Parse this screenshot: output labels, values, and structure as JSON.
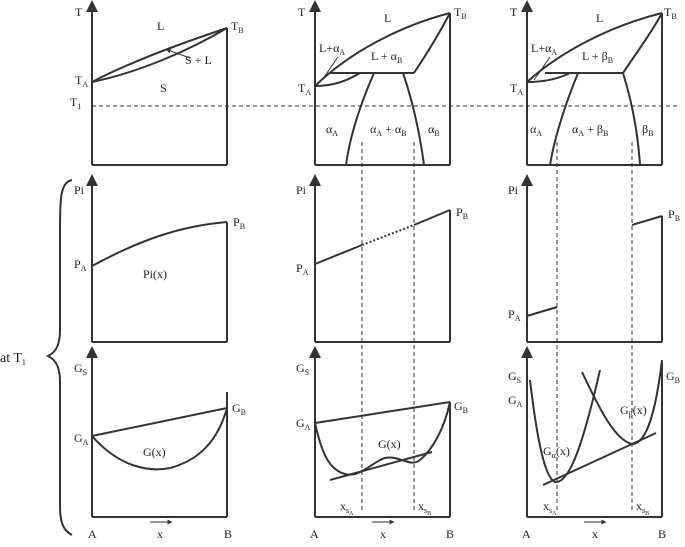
{
  "side": {
    "at": "at T",
    "at_sub": "1"
  },
  "row1": {
    "p1": {
      "T": "T",
      "TA": [
        "T",
        "A"
      ],
      "TB": [
        "T",
        "B"
      ],
      "T1": [
        "T",
        "1"
      ],
      "L": "L",
      "SL": "S + L",
      "S": "S"
    },
    "p2": {
      "T": "T",
      "TA": [
        "T",
        "A"
      ],
      "TB": [
        "T",
        "B"
      ],
      "L": "L",
      "LalphaA": [
        "L+α",
        "A"
      ],
      "LalphaB": [
        "L + α",
        "B"
      ],
      "alphaA": [
        "α",
        "A"
      ],
      "alphaAB": [
        "α",
        "A",
        " + α",
        "B"
      ],
      "alphaB": [
        "α",
        "B"
      ]
    },
    "p3": {
      "T": "T",
      "TA": [
        "T",
        "A"
      ],
      "TB": [
        "T",
        "B"
      ],
      "L": "L",
      "LalphaA": [
        "L+α",
        "A"
      ],
      "LbetaB": [
        "L + β",
        "B"
      ],
      "alphaA": [
        "α",
        "A"
      ],
      "alphaAbetaB": [
        "α",
        "A",
        " + β",
        "B"
      ],
      "betaB": [
        "β",
        "B"
      ]
    }
  },
  "row2": {
    "p1": {
      "Pi": "Pi",
      "PA": [
        "P",
        "A"
      ],
      "PB": [
        "P",
        "B"
      ],
      "Pix": "Pi(x)"
    },
    "p2": {
      "Pi": "Pi",
      "PA": [
        "P",
        "A"
      ],
      "PB": [
        "P",
        "B"
      ]
    },
    "p3": {
      "Pi": "Pi",
      "PA": [
        "P",
        "A"
      ],
      "PB": [
        "P",
        "B"
      ]
    }
  },
  "row3": {
    "p1": {
      "GS": [
        "G",
        "S"
      ],
      "GA": [
        "G",
        "A"
      ],
      "GB": [
        "G",
        "B"
      ],
      "Gx": "G(x)",
      "A": "A",
      "B": "B",
      "x": "x"
    },
    "p2": {
      "GS": [
        "G",
        "S"
      ],
      "GA": [
        "G",
        "A"
      ],
      "GB": [
        "G",
        "B"
      ],
      "Gx": "G(x)",
      "xsA": [
        "x",
        "s",
        "A"
      ],
      "xsB": [
        "x",
        "s",
        "B"
      ],
      "A": "A",
      "B": "B",
      "x": "x"
    },
    "p3": {
      "GS": [
        "G",
        "S"
      ],
      "GA": [
        "G",
        "A"
      ],
      "GB": [
        "G",
        "B"
      ],
      "Gax": [
        "G",
        "α",
        "(x)"
      ],
      "Gbx": [
        "G",
        "β",
        "(x)"
      ],
      "xsA": [
        "x",
        "s",
        "A"
      ],
      "xsB": [
        "x",
        "s",
        "B"
      ],
      "A": "A",
      "B": "B",
      "x": "x"
    }
  }
}
